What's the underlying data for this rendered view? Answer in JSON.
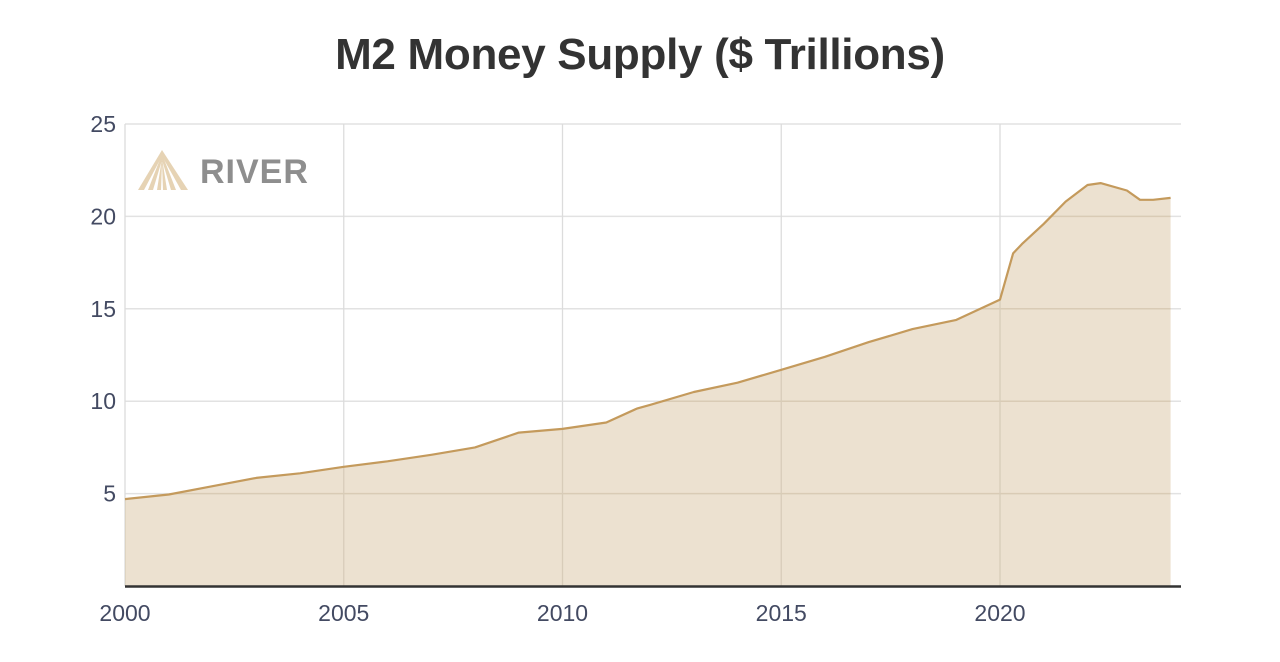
{
  "chart_data": {
    "type": "area",
    "title": "M2 Money Supply ($ Trillions)",
    "xlabel": "",
    "ylabel": "",
    "xlim": [
      2000,
      2023.9
    ],
    "ylim": [
      0,
      25
    ],
    "x_ticks": [
      "2000",
      "2005",
      "2010",
      "2015",
      "2020"
    ],
    "y_ticks": [
      "5",
      "10",
      "15",
      "20",
      "25"
    ],
    "grid": true,
    "legend": null,
    "series": [
      {
        "name": "M2 Money Supply",
        "color": "#c49a5c",
        "fill": "#ece1d0",
        "x": [
          2000,
          2001,
          2002,
          2003,
          2004,
          2005,
          2006,
          2007,
          2008,
          2009,
          2010,
          2011,
          2011.7,
          2012,
          2013,
          2014,
          2015,
          2016,
          2017,
          2018,
          2019,
          2020.0,
          2020.3,
          2020.5,
          2021,
          2021.5,
          2022.0,
          2022.3,
          2022.9,
          2023.2,
          2023.5,
          2023.9
        ],
        "values": [
          4.7,
          4.95,
          5.4,
          5.85,
          6.1,
          6.45,
          6.75,
          7.1,
          7.5,
          8.3,
          8.5,
          8.85,
          9.6,
          9.8,
          10.5,
          11.0,
          11.7,
          12.4,
          13.2,
          13.9,
          14.4,
          15.5,
          18.0,
          18.5,
          19.6,
          20.8,
          21.7,
          21.8,
          21.4,
          20.9,
          20.9,
          21.0
        ]
      }
    ]
  },
  "watermark": {
    "brand": "RIVER",
    "icon": "river-mountain-logo-icon"
  },
  "colors": {
    "line": "#c49a5c",
    "fill": "#ece1d0",
    "grid": "#e0e0e0",
    "axis": "#333333",
    "tick_text": "#434a62",
    "title": "#333333"
  }
}
